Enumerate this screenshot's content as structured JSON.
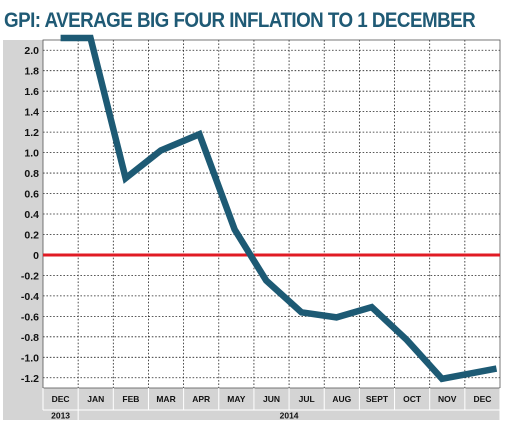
{
  "title": "GPI: AVERAGE BIG FOUR INFLATION TO 1 DECEMBER",
  "colors": {
    "title": "#1f5a75",
    "line": "#1d5a74",
    "zero_line": "#e01b24",
    "grid": "#222222",
    "plot_bg": "#ffffff",
    "axis_band": "#d4d4d4"
  },
  "chart_data": {
    "type": "line",
    "title": "GPI: AVERAGE BIG FOUR INFLATION TO 1 DECEMBER",
    "xlabel": "",
    "ylabel": "",
    "categories": [
      "DEC",
      "JAN",
      "FEB",
      "MAR",
      "APR",
      "MAY",
      "JUN",
      "JUL",
      "AUG",
      "SEPT",
      "OCT",
      "NOV",
      "DEC"
    ],
    "year_labels": [
      {
        "label": "2013",
        "from_index": 0,
        "to_index": 0
      },
      {
        "label": "2014",
        "from_index": 1,
        "to_index": 12
      }
    ],
    "x": [
      0,
      0.85,
      1.85,
      2.85,
      3.95,
      4.95,
      5.85,
      6.85,
      7.85,
      8.85,
      9.85,
      10.85,
      12.4
    ],
    "values": [
      2.12,
      2.12,
      0.75,
      1.02,
      1.18,
      0.25,
      -0.25,
      -0.56,
      -0.61,
      -0.51,
      -0.83,
      -1.21,
      -1.11
    ],
    "y_ticks": [
      2.0,
      1.8,
      1.6,
      1.4,
      1.2,
      1.0,
      0.8,
      0.6,
      0.4,
      0.2,
      0,
      -0.2,
      -0.4,
      -0.6,
      -0.8,
      -1.0,
      -1.2
    ],
    "y_tick_labels": [
      "2.0",
      "1.8",
      "1.6",
      "1.4",
      "1.2",
      "1.0",
      "0.8",
      "0.6",
      "0.4",
      "0.2",
      "0",
      "-0.2",
      "-0.4",
      "-0.6",
      "-0.8",
      "-1.0",
      "-1.2"
    ],
    "ylim": [
      -1.3,
      2.1
    ],
    "grid": true,
    "reference_line": 0
  }
}
